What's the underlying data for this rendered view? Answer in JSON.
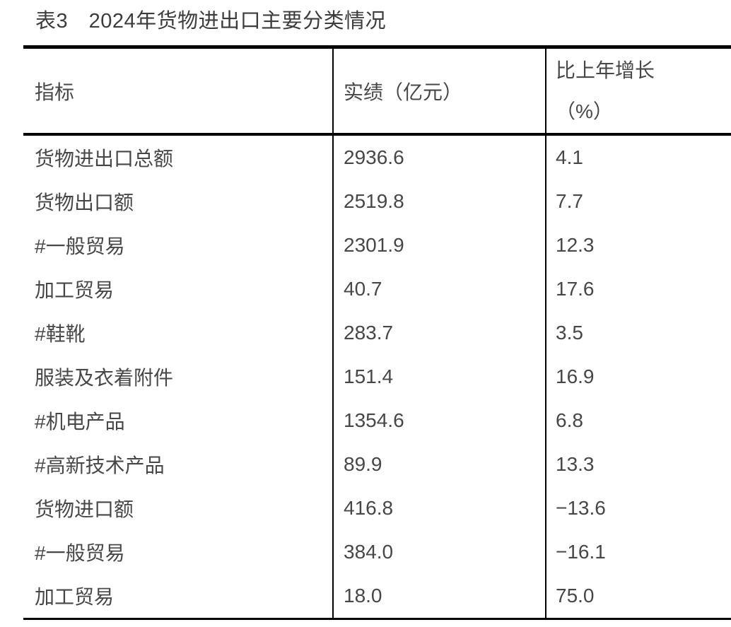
{
  "title": "表3　2024年货物进出口主要分类情况",
  "table": {
    "border_color": "#000000",
    "text_color": "#474747",
    "columns": [
      {
        "key": "indicator",
        "label": "指标"
      },
      {
        "key": "value",
        "label": "实绩（亿元）"
      },
      {
        "key": "growth",
        "label_line1": "比上年增长",
        "label_line2": "（%）"
      }
    ],
    "rows": [
      {
        "indicator": "货物进出口总额",
        "value": "2936.6",
        "growth": "4.1"
      },
      {
        "indicator": "货物出口额",
        "value": "2519.8",
        "growth": "7.7"
      },
      {
        "indicator": "#一般贸易",
        "value": "2301.9",
        "growth": "12.3"
      },
      {
        "indicator": "加工贸易",
        "value": "40.7",
        "growth": "17.6"
      },
      {
        "indicator": "#鞋靴",
        "value": "283.7",
        "growth": "3.5"
      },
      {
        "indicator": "服装及衣着附件",
        "value": "151.4",
        "growth": "16.9"
      },
      {
        "indicator": "#机电产品",
        "value": "1354.6",
        "growth": "6.8"
      },
      {
        "indicator": "#高新技术产品",
        "value": "89.9",
        "growth": "13.3"
      },
      {
        "indicator": "货物进口额",
        "value": "416.8",
        "growth": "−13.6"
      },
      {
        "indicator": "#一般贸易",
        "value": "384.0",
        "growth": "−16.1"
      },
      {
        "indicator": "加工贸易",
        "value": "18.0",
        "growth": "75.0"
      }
    ]
  }
}
